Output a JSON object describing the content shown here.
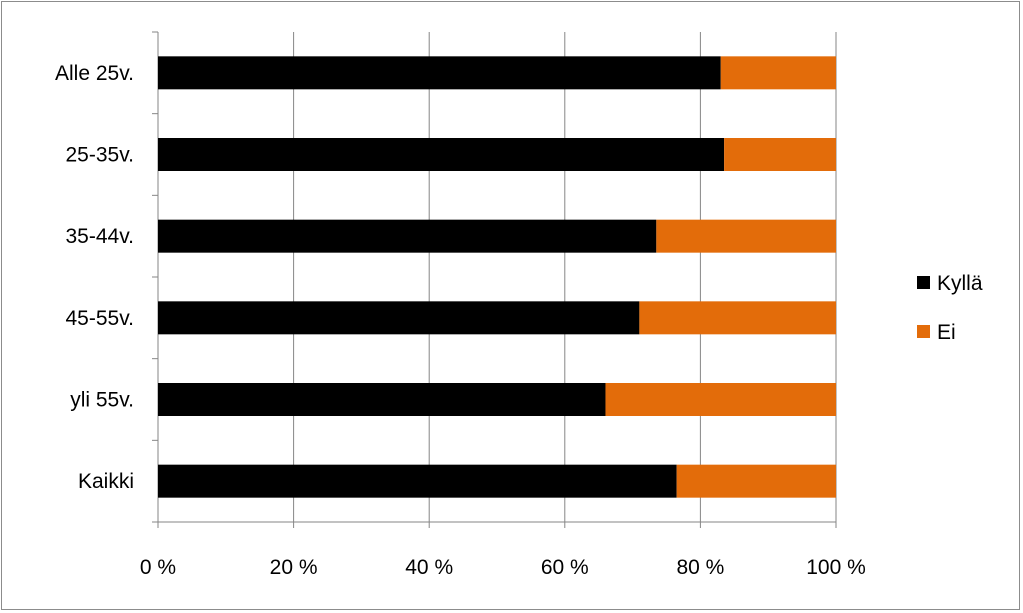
{
  "chart_data": {
    "type": "bar",
    "orientation": "horizontal",
    "stacked": true,
    "normalized_percent": true,
    "categories": [
      "Alle 25v.",
      "25-35v.",
      "35-44v.",
      "45-55v.",
      "yli 55v.",
      "Kaikki"
    ],
    "series": [
      {
        "name": "Kyllä",
        "values": [
          83,
          83.5,
          73.5,
          71,
          66,
          76.5
        ],
        "color": "#000000"
      },
      {
        "name": "Ei",
        "values": [
          17,
          16.5,
          26.5,
          29,
          34,
          23.5
        ],
        "color": "#e36c0a"
      }
    ],
    "xlim": [
      0,
      100
    ],
    "x_ticks": [
      0,
      20,
      40,
      60,
      80,
      100
    ],
    "x_tick_labels": [
      "0 %",
      "20 %",
      "40 %",
      "60 %",
      "80 %",
      "100 %"
    ],
    "title": "",
    "xlabel": "",
    "ylabel": "",
    "grid": "vertical",
    "legend": "right"
  }
}
